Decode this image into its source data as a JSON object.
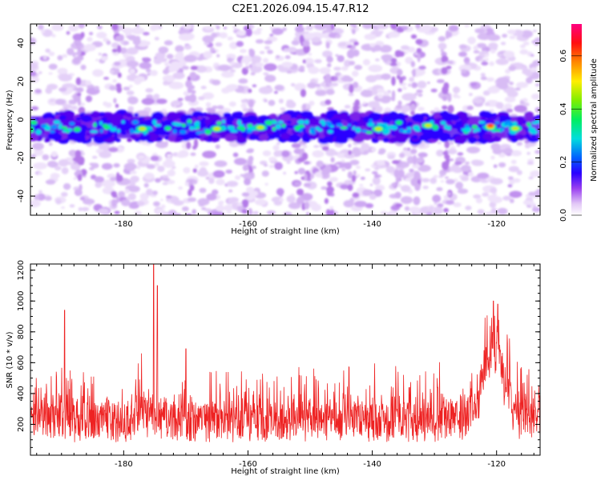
{
  "title": "C2E1.2026.094.15.47.R12",
  "chart_data": [
    {
      "type": "heatmap",
      "xlabel": "Height of straight line (km)",
      "ylabel": "Frequency (Hz)",
      "xlim": [
        -195,
        -113
      ],
      "ylim": [
        -50,
        50
      ],
      "xticks": [
        -180,
        -160,
        -140,
        -120
      ],
      "yticks": [
        -40,
        -20,
        0,
        20,
        40
      ],
      "band_center_hz": -4,
      "band_halfwidth_hz": 7,
      "hotspots_km": [
        -177,
        -165,
        -158,
        -139,
        -131,
        -121,
        -117
      ],
      "peak_km": -121,
      "colorbar": {
        "label": "Normalized spectral amplitude",
        "range": [
          0,
          0.72
        ],
        "ticks": [
          0.0,
          0.2,
          0.4,
          0.6
        ]
      }
    },
    {
      "type": "line",
      "xlabel": "Height of straight line (km)",
      "ylabel": "SNR (10 * v/v)",
      "xlim": [
        -195,
        -113
      ],
      "ylim": [
        0,
        1240
      ],
      "xticks": [
        -180,
        -160,
        -140,
        -120
      ],
      "yticks": [
        200,
        400,
        600,
        800,
        1000,
        1200
      ],
      "series_color": "#ee2222",
      "baseline_snr": 200,
      "spikes": [
        {
          "x": -189.5,
          "y": 940
        },
        {
          "x": -175.2,
          "y": 1240
        },
        {
          "x": -174.6,
          "y": 1100
        },
        {
          "x": -170.0,
          "y": 690
        },
        {
          "x": -120.5,
          "y": 1000
        },
        {
          "x": -119.8,
          "y": 980
        }
      ],
      "hump": {
        "center": -120.5,
        "width": 2.2,
        "height": 520
      }
    }
  ]
}
